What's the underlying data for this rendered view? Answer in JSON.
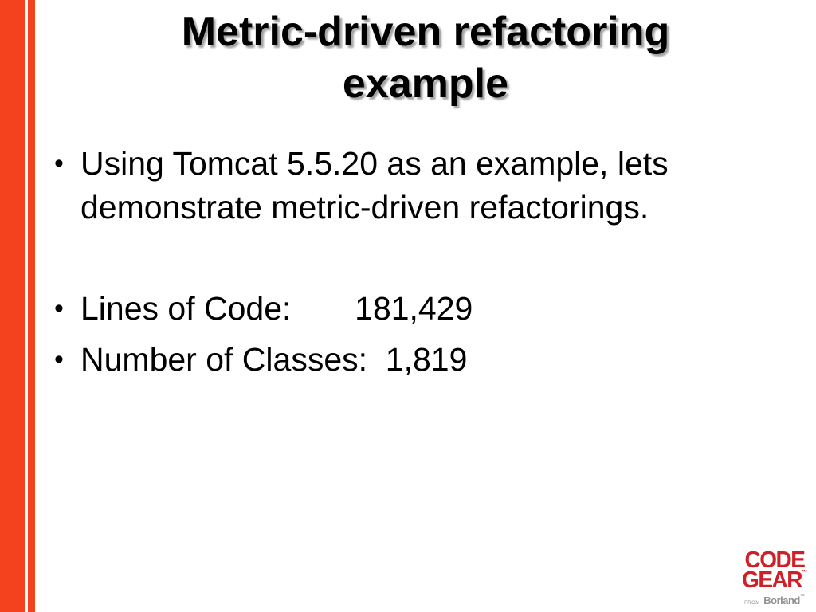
{
  "slide": {
    "title": "Metric-driven refactoring\nexample",
    "bullet_glyph": "•",
    "bullets": [
      {
        "text": "Using Tomcat 5.5.20 as an example, lets\ndemonstrate metric-driven refactorings."
      },
      {
        "text": "Lines of Code:       181,429"
      },
      {
        "text": "Number of Classes:  1,819"
      }
    ]
  },
  "logo": {
    "line1": "CODE",
    "line2": "GEAR",
    "tm": "™",
    "from": "FROM",
    "brand": "Borland"
  },
  "colors": {
    "accent_bar": "#f4421f",
    "background": "#ffffff",
    "text": "#000000",
    "title_shadow": "#a3a3a3",
    "logo_red": "#ce2026",
    "logo_gray": "#8f9194"
  }
}
